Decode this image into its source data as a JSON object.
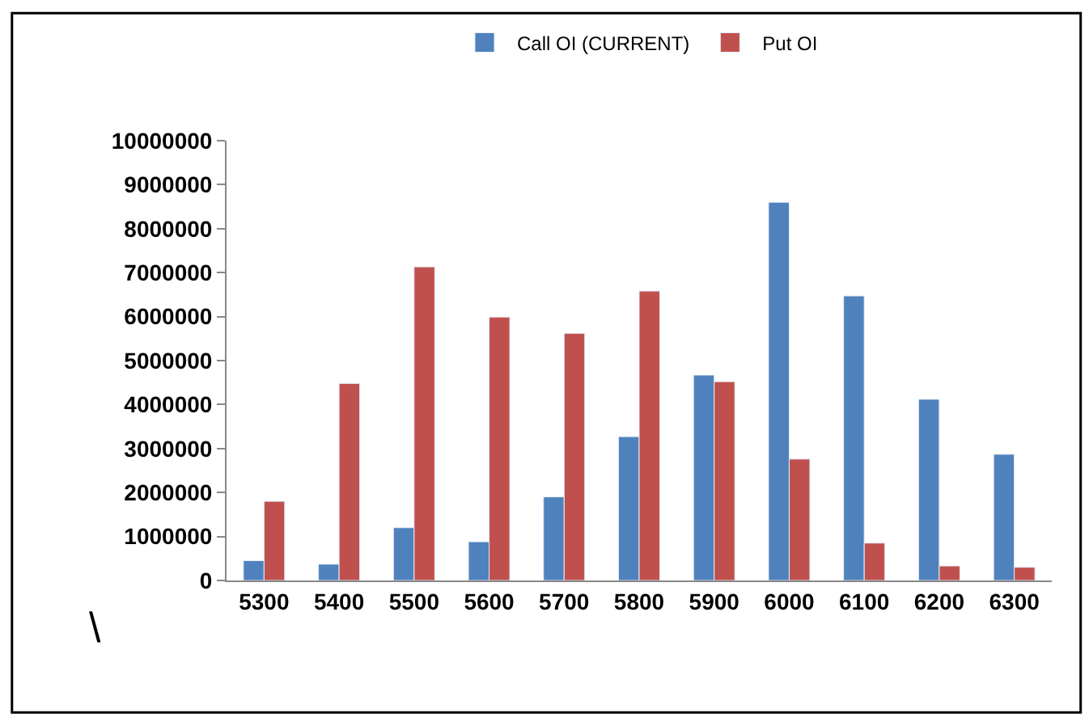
{
  "chart_data": {
    "type": "bar",
    "categories": [
      "5300",
      "5400",
      "5500",
      "5600",
      "5700",
      "5800",
      "5900",
      "6000",
      "6100",
      "6200",
      "6300"
    ],
    "series": [
      {
        "name": "Call OI (CURRENT)",
        "color": "#4f81bd",
        "values": [
          450000,
          370000,
          1200000,
          880000,
          1900000,
          3270000,
          4670000,
          8600000,
          6470000,
          4120000,
          2870000
        ]
      },
      {
        "name": "Put OI",
        "color": "#c0504d",
        "values": [
          1800000,
          4480000,
          7130000,
          5990000,
          5620000,
          6580000,
          4520000,
          2760000,
          850000,
          330000,
          300000
        ]
      }
    ],
    "ylim": [
      0,
      10000000
    ],
    "yticks": [
      0,
      1000000,
      2000000,
      3000000,
      4000000,
      5000000,
      6000000,
      7000000,
      8000000,
      9000000,
      10000000
    ],
    "legend": "top",
    "annotations": [
      "\\"
    ]
  }
}
